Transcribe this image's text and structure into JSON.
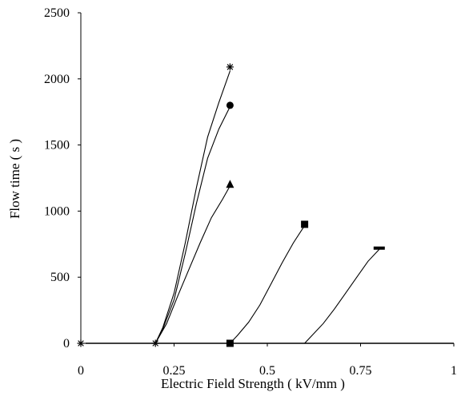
{
  "chart_data": {
    "type": "line",
    "xlabel": "Electric Field Strength ( kV/mm )",
    "ylabel": "Flow time ( s )",
    "xlim": [
      0,
      1
    ],
    "ylim": [
      0,
      2500
    ],
    "xticks": [
      0,
      0.25,
      0.5,
      0.75,
      1
    ],
    "xtick_labels": [
      "0",
      "0.25",
      "0.5",
      "0.75",
      "1"
    ],
    "yticks": [
      0,
      500,
      1000,
      1500,
      2000,
      2500
    ],
    "ytick_labels": [
      "0",
      "500",
      "1000",
      "1500",
      "2000",
      "2500"
    ],
    "grid": false,
    "legend": "none",
    "series": [
      {
        "marker": "asterisk",
        "marker_points": [
          [
            0,
            0
          ],
          [
            0.2,
            0
          ],
          [
            0.4,
            2090
          ]
        ],
        "curve": [
          [
            0.2,
            0
          ],
          [
            0.22,
            120
          ],
          [
            0.25,
            380
          ],
          [
            0.28,
            760
          ],
          [
            0.31,
            1180
          ],
          [
            0.34,
            1560
          ],
          [
            0.37,
            1820
          ],
          [
            0.4,
            2060
          ]
        ]
      },
      {
        "marker": "circle",
        "marker_points": [
          [
            0.4,
            1800
          ]
        ],
        "curve": [
          [
            0.2,
            0
          ],
          [
            0.22,
            110
          ],
          [
            0.25,
            330
          ],
          [
            0.28,
            680
          ],
          [
            0.31,
            1060
          ],
          [
            0.34,
            1400
          ],
          [
            0.37,
            1620
          ],
          [
            0.4,
            1790
          ]
        ]
      },
      {
        "marker": "triangle",
        "marker_points": [
          [
            0.4,
            1200
          ]
        ],
        "curve": [
          [
            0.2,
            0
          ],
          [
            0.23,
            150
          ],
          [
            0.26,
            360
          ],
          [
            0.29,
            560
          ],
          [
            0.32,
            760
          ],
          [
            0.35,
            950
          ],
          [
            0.38,
            1090
          ],
          [
            0.4,
            1190
          ]
        ]
      },
      {
        "marker": "square",
        "marker_points": [
          [
            0.4,
            0
          ],
          [
            0.6,
            900
          ]
        ],
        "curve": [
          [
            0.4,
            0
          ],
          [
            0.42,
            60
          ],
          [
            0.45,
            160
          ],
          [
            0.48,
            290
          ],
          [
            0.51,
            450
          ],
          [
            0.54,
            610
          ],
          [
            0.57,
            760
          ],
          [
            0.6,
            890
          ]
        ]
      },
      {
        "marker": "dash",
        "marker_points": [
          [
            0.8,
            720
          ]
        ],
        "curve": [
          [
            0.6,
            0
          ],
          [
            0.62,
            60
          ],
          [
            0.65,
            150
          ],
          [
            0.68,
            260
          ],
          [
            0.71,
            380
          ],
          [
            0.74,
            500
          ],
          [
            0.77,
            620
          ],
          [
            0.8,
            710
          ]
        ]
      }
    ]
  }
}
